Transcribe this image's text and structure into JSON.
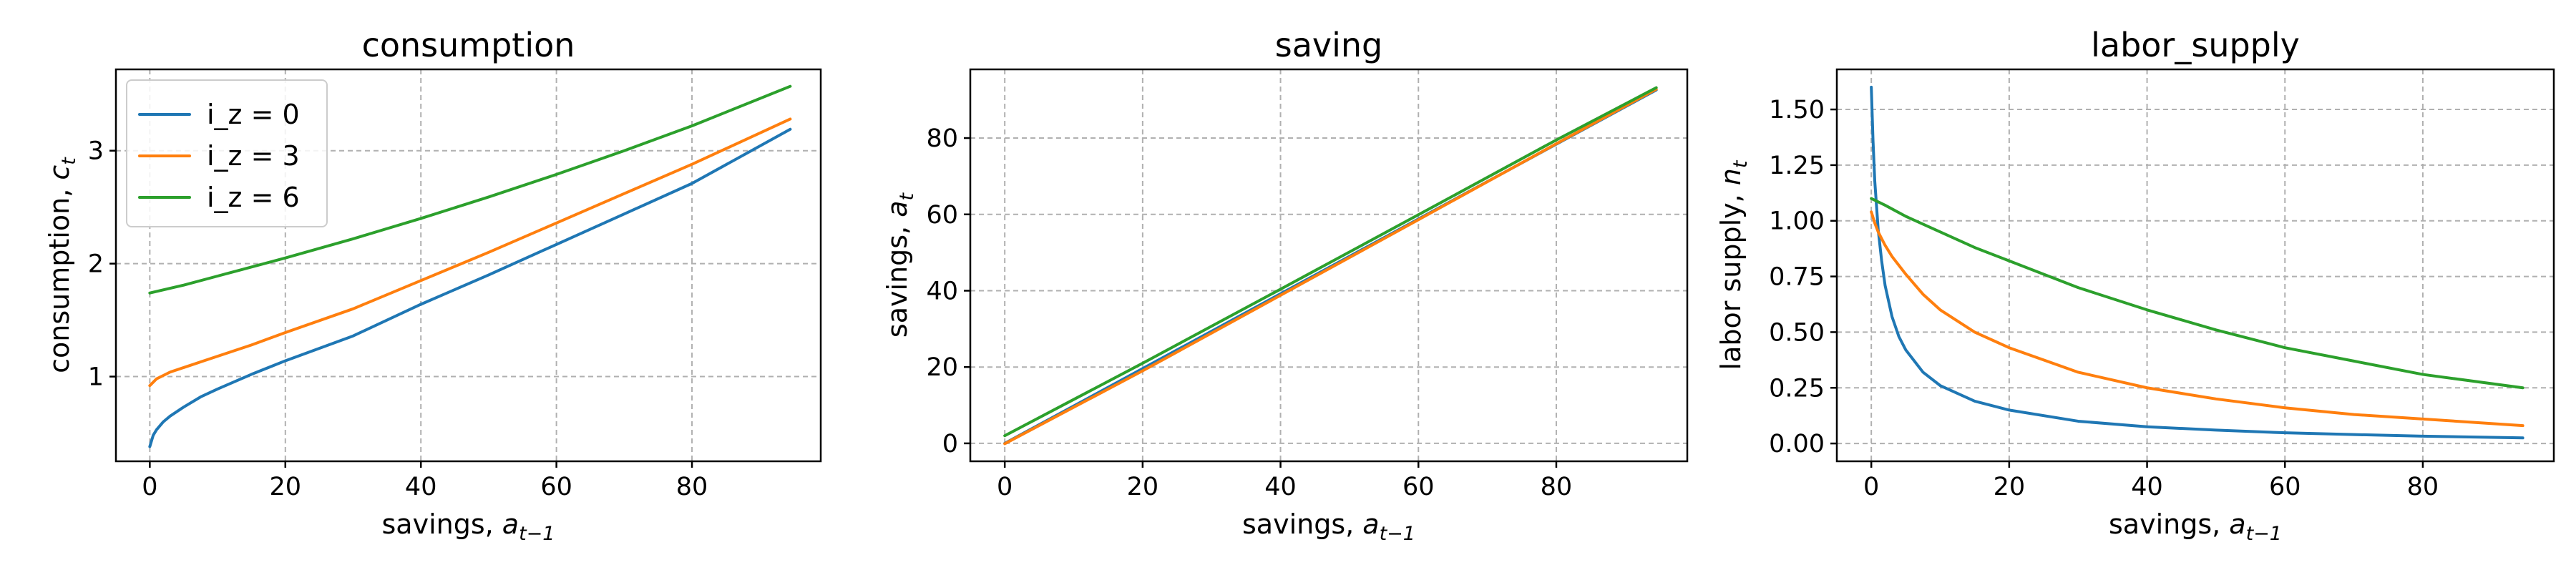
{
  "chart_data": [
    {
      "type": "line",
      "title": "consumption",
      "xlabel": "savings, ",
      "xlabel_math": {
        "base": "a",
        "sub": "t−1"
      },
      "ylabel": "consumption, ",
      "ylabel_math": {
        "base": "c",
        "sub": "t"
      },
      "xlim": [
        -5,
        99
      ],
      "ylim": [
        0.25,
        3.72
      ],
      "xticks": [
        0,
        20,
        40,
        60,
        80
      ],
      "xtick_labels": [
        "0",
        "20",
        "40",
        "60",
        "80"
      ],
      "yticks": [
        1,
        2,
        3
      ],
      "ytick_labels": [
        "1",
        "2",
        "3"
      ],
      "grid": true,
      "legend": {
        "placement": "top-left",
        "entries": [
          "i_z = 0",
          "i_z = 3",
          "i_z = 6"
        ]
      },
      "series": [
        {
          "name": "i_z = 0",
          "color": "#1f77b4",
          "x": [
            0,
            0.5,
            1,
            2,
            3,
            5,
            7.5,
            10,
            15,
            20,
            30,
            40,
            50,
            60,
            70,
            80,
            94.5
          ],
          "y": [
            0.38,
            0.48,
            0.53,
            0.6,
            0.65,
            0.73,
            0.82,
            0.89,
            1.02,
            1.14,
            1.36,
            1.64,
            1.9,
            2.17,
            2.44,
            2.71,
            3.19
          ]
        },
        {
          "name": "i_z = 3",
          "color": "#ff7f0e",
          "x": [
            0,
            1,
            2,
            3,
            5,
            7.5,
            10,
            15,
            20,
            30,
            40,
            50,
            60,
            70,
            80,
            94.5
          ],
          "y": [
            0.92,
            0.98,
            1.01,
            1.04,
            1.08,
            1.13,
            1.18,
            1.28,
            1.39,
            1.6,
            1.85,
            2.1,
            2.36,
            2.62,
            2.88,
            3.28
          ]
        },
        {
          "name": "i_z = 6",
          "color": "#2ca02c",
          "x": [
            0,
            5,
            10,
            20,
            30,
            40,
            50,
            60,
            70,
            80,
            94.5
          ],
          "y": [
            1.74,
            1.81,
            1.89,
            2.05,
            2.22,
            2.4,
            2.59,
            2.79,
            3.0,
            3.22,
            3.57
          ]
        }
      ]
    },
    {
      "type": "line",
      "title": "saving",
      "xlabel": "savings, ",
      "xlabel_math": {
        "base": "a",
        "sub": "t−1"
      },
      "ylabel": "savings, ",
      "ylabel_math": {
        "base": "a",
        "sub": "t"
      },
      "xlim": [
        -5,
        99
      ],
      "ylim": [
        -4.7,
        98
      ],
      "xticks": [
        0,
        20,
        40,
        60,
        80
      ],
      "xtick_labels": [
        "0",
        "20",
        "40",
        "60",
        "80"
      ],
      "yticks": [
        0,
        20,
        40,
        60,
        80
      ],
      "ytick_labels": [
        "0",
        "20",
        "40",
        "60",
        "80"
      ],
      "grid": true,
      "series": [
        {
          "name": "i_z = 0",
          "color": "#1f77b4",
          "x": [
            0,
            94.5
          ],
          "y": [
            0.0,
            92.6
          ]
        },
        {
          "name": "i_z = 3",
          "color": "#ff7f0e",
          "x": [
            0,
            20,
            40,
            60,
            80,
            94.5
          ],
          "y": [
            -0.1,
            19.0,
            38.8,
            58.6,
            78.5,
            92.8
          ]
        },
        {
          "name": "i_z = 6",
          "color": "#2ca02c",
          "x": [
            0,
            20,
            40,
            60,
            80,
            94.5
          ],
          "y": [
            2.0,
            21.0,
            40.4,
            59.9,
            79.5,
            93.2
          ]
        }
      ]
    },
    {
      "type": "line",
      "title": "labor_supply",
      "xlabel": "savings, ",
      "xlabel_math": {
        "base": "a",
        "sub": "t−1"
      },
      "ylabel": "labor supply, ",
      "ylabel_math": {
        "base": "n",
        "sub": "t"
      },
      "xlim": [
        -5,
        99
      ],
      "ylim": [
        -0.08,
        1.68
      ],
      "xticks": [
        0,
        20,
        40,
        60,
        80
      ],
      "xtick_labels": [
        "0",
        "20",
        "40",
        "60",
        "80"
      ],
      "yticks": [
        0,
        0.25,
        0.5,
        0.75,
        1.0,
        1.25,
        1.5
      ],
      "ytick_labels": [
        "0.00",
        "0.25",
        "0.50",
        "0.75",
        "1.00",
        "1.25",
        "1.50"
      ],
      "grid": true,
      "series": [
        {
          "name": "i_z = 0",
          "color": "#1f77b4",
          "x": [
            0,
            0.25,
            0.5,
            1,
            1.5,
            2,
            3,
            4,
            5,
            7.5,
            10,
            15,
            20,
            30,
            40,
            50,
            60,
            70,
            80,
            94.5
          ],
          "y": [
            1.6,
            1.36,
            1.18,
            0.96,
            0.82,
            0.71,
            0.57,
            0.48,
            0.42,
            0.32,
            0.26,
            0.19,
            0.15,
            0.1,
            0.075,
            0.06,
            0.048,
            0.04,
            0.033,
            0.025
          ]
        },
        {
          "name": "i_z = 3",
          "color": "#ff7f0e",
          "x": [
            0,
            0.5,
            1,
            2,
            3,
            5,
            7.5,
            10,
            15,
            20,
            30,
            40,
            50,
            60,
            70,
            80,
            94.5
          ],
          "y": [
            1.04,
            0.99,
            0.95,
            0.89,
            0.84,
            0.76,
            0.67,
            0.6,
            0.5,
            0.43,
            0.32,
            0.25,
            0.2,
            0.16,
            0.13,
            0.11,
            0.08
          ]
        },
        {
          "name": "i_z = 6",
          "color": "#2ca02c",
          "x": [
            0,
            2,
            5,
            10,
            15,
            20,
            30,
            40,
            50,
            60,
            70,
            80,
            94.5
          ],
          "y": [
            1.1,
            1.07,
            1.02,
            0.95,
            0.88,
            0.82,
            0.7,
            0.6,
            0.51,
            0.43,
            0.37,
            0.31,
            0.25
          ]
        }
      ]
    }
  ]
}
